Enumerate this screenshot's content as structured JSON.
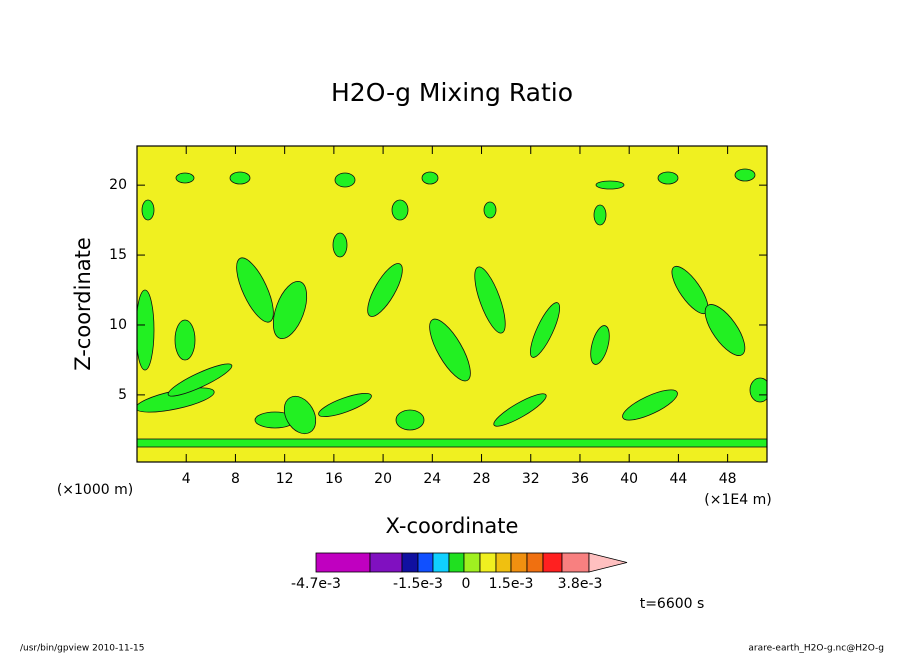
{
  "chart_data": {
    "type": "contour",
    "title": "H2O-g Mixing Ratio",
    "x_label": "X-coordinate",
    "y_label": "Z-coordinate",
    "x_unit": "(×1E4 m)",
    "y_unit": "(×1000 m)",
    "xlim": [
      0,
      51.2
    ],
    "ylim": [
      0.2,
      22.8
    ],
    "xticks": [
      4,
      8,
      12,
      16,
      20,
      24,
      28,
      32,
      36,
      40,
      44,
      48
    ],
    "yticks": [
      5,
      10,
      15,
      20
    ],
    "background": "#f0f020",
    "colorbar": {
      "colors": [
        "#c000c0",
        "#8010c0",
        "#1010a0",
        "#1050ff",
        "#10d0ff",
        "#20e020",
        "#a0f020",
        "#f0f020",
        "#f0c010",
        "#f09010",
        "#f07010",
        "#ff2020",
        "#f88080",
        "#ffc0c0"
      ],
      "labels": [
        "-4.7e-3",
        "-1.5e-3",
        "0",
        "1.5e-3",
        "3.8e-3"
      ]
    },
    "time_label": "t=6600 s",
    "footer_left": "/usr/bin/gpview   2010-11-15",
    "footer_right": "arare-earth_H2O-g.nc@H2O-g"
  }
}
